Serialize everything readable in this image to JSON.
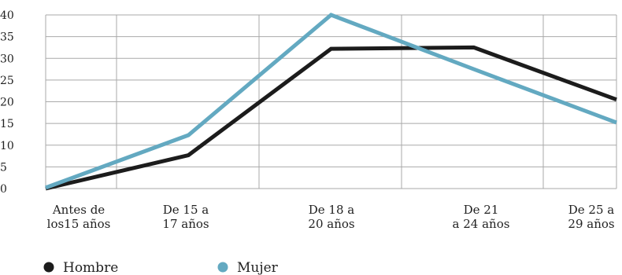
{
  "chart_data": {
    "type": "line",
    "categories": [
      [
        "Antes de",
        "los15 años"
      ],
      [
        "De 15 a",
        "17 años"
      ],
      [
        "De 18 a",
        "20 años"
      ],
      [
        "De 21",
        "a 24 años"
      ],
      [
        "De 25 a",
        "29 años"
      ]
    ],
    "series": [
      {
        "name": "Hombre",
        "values": [
          0,
          7.7,
          32.2,
          32.5,
          20.5
        ],
        "color": "#1c1c1c"
      },
      {
        "name": "Mujer",
        "values": [
          0.2,
          12.3,
          40,
          27.5,
          15.2
        ],
        "color": "#63a9c1"
      }
    ],
    "ylim": [
      0,
      40
    ],
    "yticks": [
      "0",
      "5",
      "10",
      "15",
      "20",
      "25",
      "30",
      "35",
      "40"
    ],
    "grid": true,
    "legend_position": "bottom-left",
    "title": "",
    "xlabel": "",
    "ylabel": ""
  }
}
